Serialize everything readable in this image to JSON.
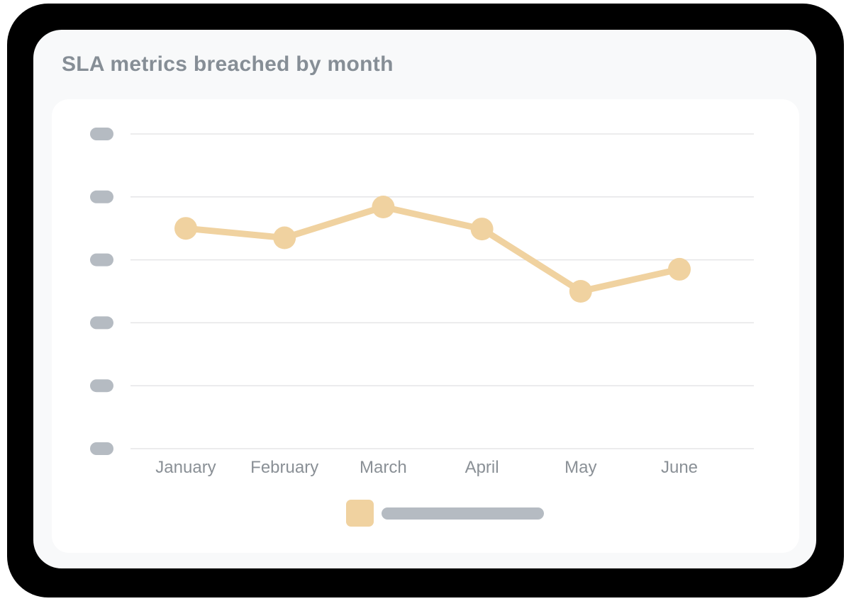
{
  "card": {
    "title": "SLA metrics breached by month"
  },
  "colors": {
    "page_background": "#ffffff",
    "shadow": "#000000",
    "card_background": "#f8f9fa",
    "panel_background": "#ffffff",
    "title_text": "#868e96",
    "axis_label_text": "#8a9096",
    "gridline": "#e5e5e7",
    "skeleton_placeholder": "#b5bbc2",
    "series": "#f0d2a0"
  },
  "chart_data": {
    "type": "line",
    "title": "SLA metrics breached by month",
    "categories": [
      "January",
      "February",
      "March",
      "April",
      "May",
      "June"
    ],
    "series": [
      {
        "name": "",
        "color": "#f0d2a0",
        "values": [
          3.5,
          3.35,
          3.84,
          3.49,
          2.5,
          2.85
        ]
      }
    ],
    "xlabel": "",
    "ylabel": "",
    "ylim": [
      0,
      5
    ],
    "y_gridlines": [
      0,
      1,
      2,
      3,
      4,
      5
    ],
    "y_tick_labels": [
      "",
      "",
      "",
      "",
      "",
      ""
    ],
    "y_tick_style": "skeleton-placeholder-pill",
    "grid": true,
    "marker": "circle",
    "legend_position": "bottom",
    "legend": [
      {
        "label": "",
        "label_style": "skeleton-placeholder-bar",
        "swatch_color": "#f0d2a0"
      }
    ]
  }
}
